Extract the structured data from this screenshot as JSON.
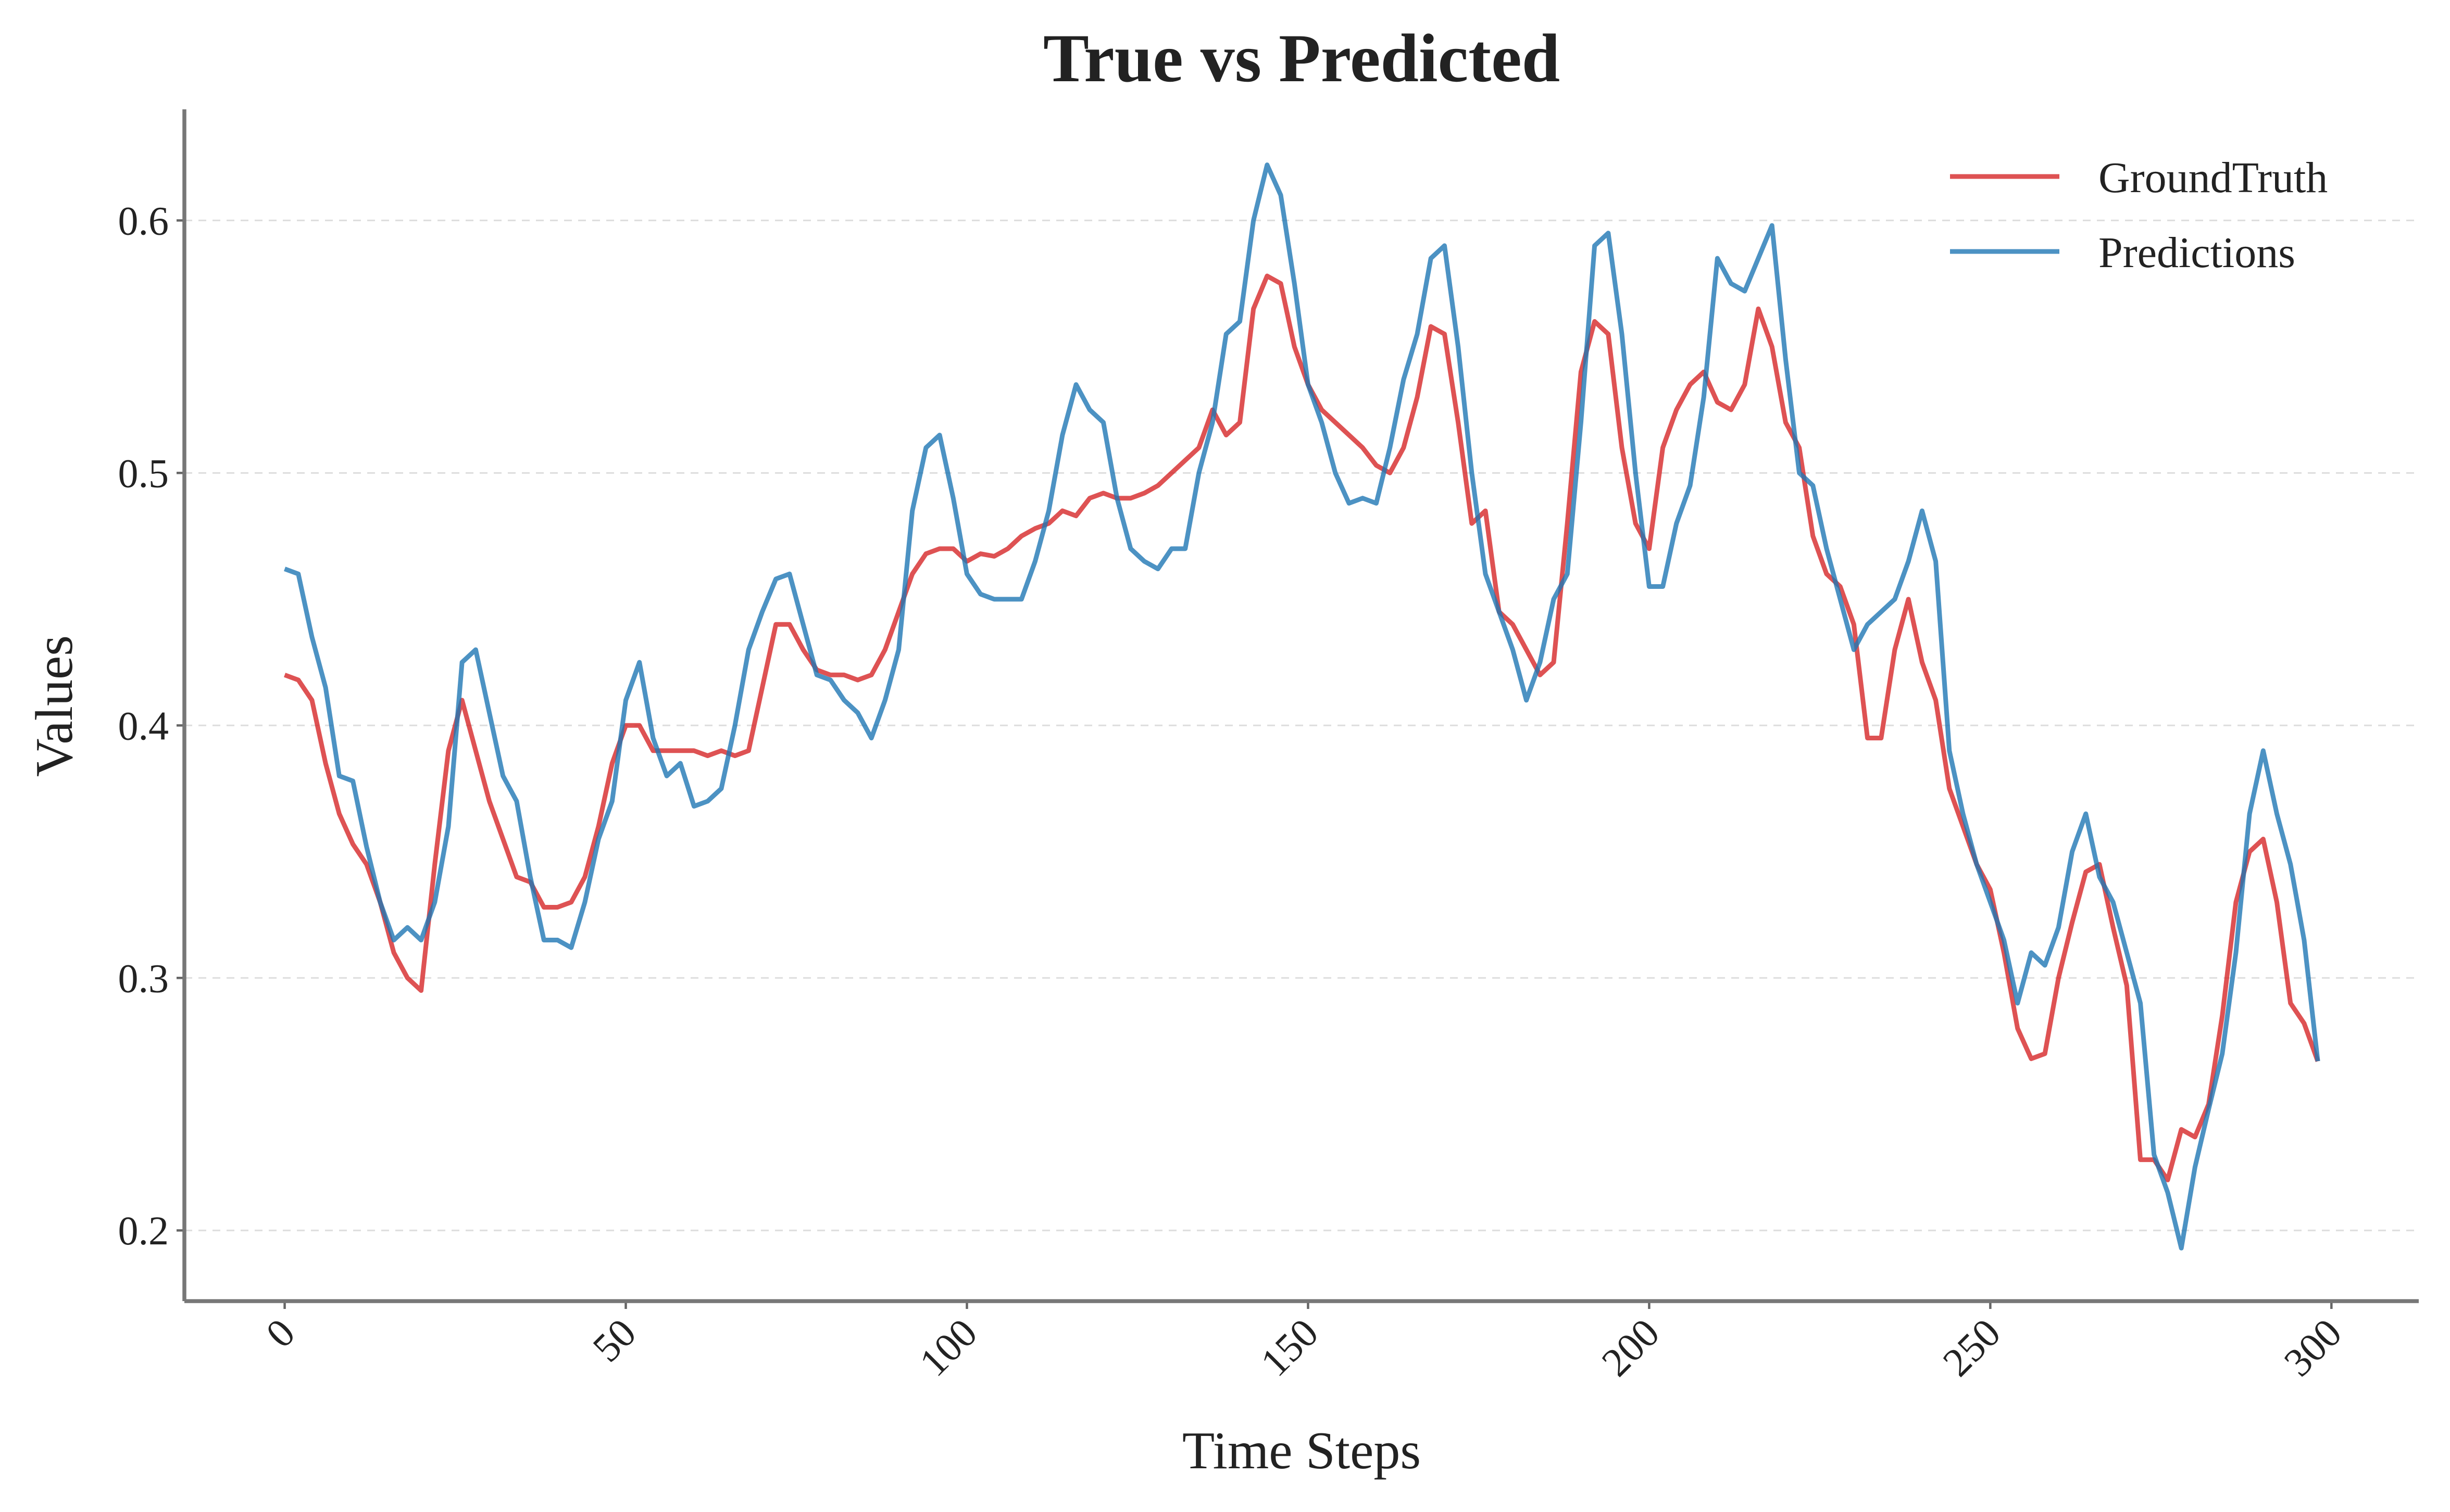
{
  "chart_data": {
    "type": "line",
    "title": "True vs Predicted",
    "xlabel": "Time Steps",
    "ylabel": "Values",
    "x": [
      0,
      2,
      4,
      6,
      8,
      10,
      12,
      14,
      16,
      18,
      20,
      22,
      24,
      26,
      28,
      30,
      32,
      34,
      36,
      38,
      40,
      42,
      44,
      46,
      48,
      50,
      52,
      54,
      56,
      58,
      60,
      62,
      64,
      66,
      68,
      70,
      72,
      74,
      76,
      78,
      80,
      82,
      84,
      86,
      88,
      90,
      92,
      94,
      96,
      98,
      100,
      102,
      104,
      106,
      108,
      110,
      112,
      114,
      116,
      118,
      120,
      122,
      124,
      126,
      128,
      130,
      132,
      134,
      136,
      138,
      140,
      142,
      144,
      146,
      148,
      150,
      152,
      154,
      156,
      158,
      160,
      162,
      164,
      166,
      168,
      170,
      172,
      174,
      176,
      178,
      180,
      182,
      184,
      186,
      188,
      190,
      192,
      194,
      196,
      198,
      200,
      202,
      204,
      206,
      208,
      210,
      212,
      214,
      216,
      218,
      220,
      222,
      224,
      226,
      228,
      230,
      232,
      234,
      236,
      238,
      240,
      242,
      244,
      246,
      248,
      250,
      252,
      254,
      256,
      258,
      260,
      262,
      264,
      266,
      268,
      270,
      272,
      274,
      276,
      278,
      280,
      282,
      284,
      286,
      288,
      290,
      292,
      294,
      296,
      298
    ],
    "series": [
      {
        "name": "GroundTruth",
        "color": "#d62728",
        "values": [
          0.42,
          0.418,
          0.41,
          0.385,
          0.365,
          0.353,
          0.345,
          0.33,
          0.31,
          0.3,
          0.295,
          0.345,
          0.39,
          0.41,
          0.39,
          0.37,
          0.355,
          0.34,
          0.338,
          0.328,
          0.328,
          0.33,
          0.34,
          0.36,
          0.385,
          0.4,
          0.4,
          0.39,
          0.39,
          0.39,
          0.39,
          0.388,
          0.39,
          0.388,
          0.39,
          0.415,
          0.44,
          0.44,
          0.43,
          0.422,
          0.42,
          0.42,
          0.418,
          0.42,
          0.43,
          0.445,
          0.46,
          0.468,
          0.47,
          0.47,
          0.465,
          0.468,
          0.467,
          0.47,
          0.475,
          0.478,
          0.48,
          0.485,
          0.483,
          0.49,
          0.492,
          0.49,
          0.49,
          0.492,
          0.495,
          0.5,
          0.505,
          0.51,
          0.525,
          0.515,
          0.52,
          0.565,
          0.578,
          0.575,
          0.55,
          0.535,
          0.525,
          0.52,
          0.515,
          0.51,
          0.503,
          0.5,
          0.51,
          0.53,
          0.558,
          0.555,
          0.52,
          0.48,
          0.485,
          0.445,
          0.44,
          0.43,
          0.42,
          0.425,
          0.48,
          0.54,
          0.56,
          0.555,
          0.51,
          0.48,
          0.47,
          0.51,
          0.525,
          0.535,
          0.54,
          0.528,
          0.525,
          0.535,
          0.565,
          0.55,
          0.52,
          0.51,
          0.475,
          0.46,
          0.455,
          0.44,
          0.395,
          0.395,
          0.43,
          0.45,
          0.425,
          0.41,
          0.375,
          0.36,
          0.345,
          0.335,
          0.31,
          0.28,
          0.268,
          0.27,
          0.3,
          0.322,
          0.342,
          0.345,
          0.32,
          0.297,
          0.228,
          0.228,
          0.22,
          0.24,
          0.237,
          0.25,
          0.285,
          0.33,
          0.35,
          0.355,
          0.33,
          0.29,
          0.282,
          0.267
        ]
      },
      {
        "name": "Predictions",
        "color": "#1f77b4",
        "values": [
          0.462,
          0.46,
          0.435,
          0.415,
          0.38,
          0.378,
          0.352,
          0.33,
          0.315,
          0.32,
          0.315,
          0.33,
          0.36,
          0.425,
          0.43,
          0.405,
          0.38,
          0.37,
          0.34,
          0.315,
          0.315,
          0.312,
          0.33,
          0.355,
          0.37,
          0.41,
          0.425,
          0.395,
          0.38,
          0.385,
          0.368,
          0.37,
          0.375,
          0.4,
          0.43,
          0.445,
          0.458,
          0.46,
          0.44,
          0.42,
          0.418,
          0.41,
          0.405,
          0.395,
          0.41,
          0.43,
          0.485,
          0.51,
          0.515,
          0.49,
          0.46,
          0.452,
          0.45,
          0.45,
          0.45,
          0.465,
          0.485,
          0.515,
          0.535,
          0.525,
          0.52,
          0.49,
          0.47,
          0.465,
          0.462,
          0.47,
          0.47,
          0.5,
          0.52,
          0.555,
          0.56,
          0.6,
          0.622,
          0.61,
          0.575,
          0.535,
          0.52,
          0.5,
          0.488,
          0.49,
          0.488,
          0.51,
          0.537,
          0.555,
          0.585,
          0.59,
          0.55,
          0.5,
          0.46,
          0.445,
          0.43,
          0.41,
          0.425,
          0.45,
          0.46,
          0.52,
          0.59,
          0.595,
          0.555,
          0.5,
          0.455,
          0.455,
          0.48,
          0.495,
          0.53,
          0.585,
          0.575,
          0.572,
          0.585,
          0.598,
          0.545,
          0.5,
          0.495,
          0.47,
          0.45,
          0.43,
          0.44,
          0.445,
          0.45,
          0.465,
          0.485,
          0.465,
          0.39,
          0.365,
          0.345,
          0.33,
          0.315,
          0.29,
          0.31,
          0.305,
          0.32,
          0.35,
          0.365,
          0.34,
          0.33,
          0.31,
          0.29,
          0.23,
          0.215,
          0.193,
          0.225,
          0.248,
          0.27,
          0.31,
          0.365,
          0.39,
          0.365,
          0.345,
          0.315,
          0.267
        ]
      }
    ],
    "xlim": [
      -14.7,
      312.8
    ],
    "ylim": [
      0.172,
      0.644
    ],
    "xticks": [
      0,
      50,
      100,
      150,
      200,
      250,
      300
    ],
    "yticks": [
      0.2,
      0.3,
      0.4,
      0.5,
      0.6
    ],
    "grid": true,
    "legend": "upper right"
  }
}
